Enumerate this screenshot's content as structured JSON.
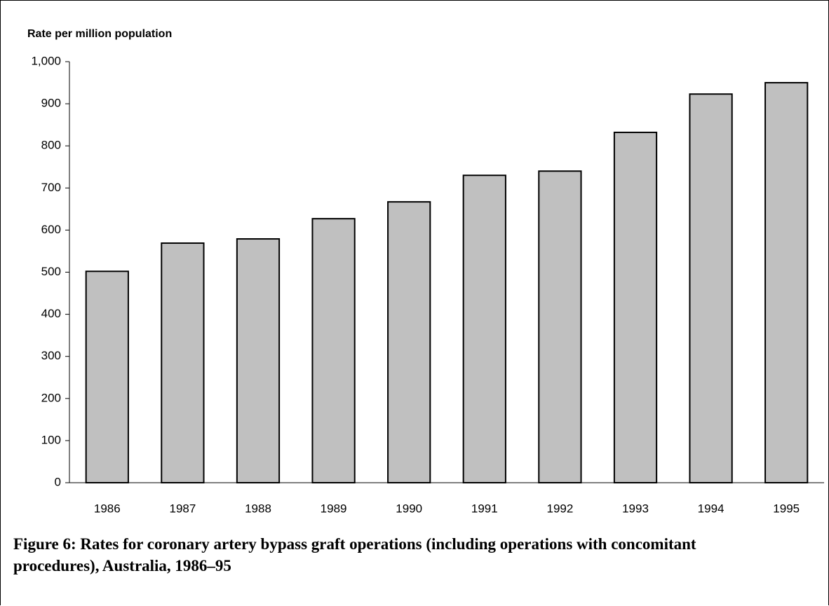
{
  "chart_data": {
    "type": "bar",
    "title": "Rate per million population",
    "caption": "Figure 6: Rates for coronary artery bypass graft operations (including operations with concomitant procedures), Australia, 1986–95",
    "categories": [
      "1986",
      "1987",
      "1988",
      "1989",
      "1990",
      "1991",
      "1992",
      "1993",
      "1994",
      "1995"
    ],
    "values": [
      502,
      569,
      579,
      627,
      667,
      730,
      740,
      832,
      923,
      950
    ],
    "color": "#c0c0c0",
    "ylim": [
      0,
      1000
    ],
    "yticks": [
      0,
      100,
      200,
      300,
      400,
      500,
      600,
      700,
      800,
      900,
      {
        "value": 1000,
        "label": "1,000"
      }
    ],
    "grid": false
  }
}
